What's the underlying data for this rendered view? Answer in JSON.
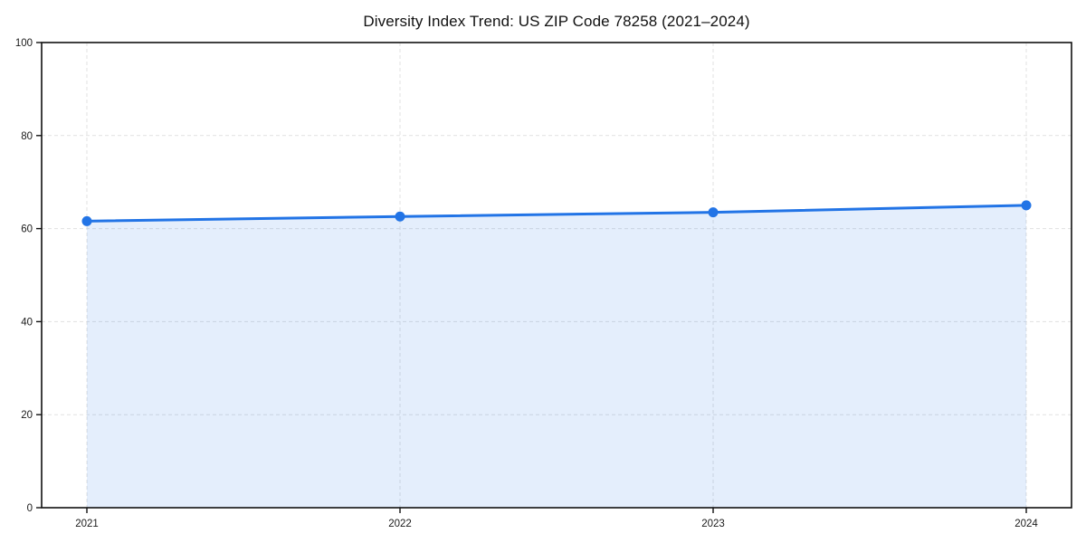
{
  "chart_data": {
    "type": "area",
    "title": "Diversity Index Trend: US ZIP Code 78258 (2021–2024)",
    "series_name": "Diversity Index",
    "categories": [
      "2021",
      "2022",
      "2023",
      "2024"
    ],
    "x": [
      2021,
      2022,
      2023,
      2024
    ],
    "values": [
      61.6,
      62.6,
      63.5,
      65.0
    ],
    "xlabel": "",
    "ylabel": "",
    "ylim": [
      0,
      100
    ],
    "yticks": [
      0,
      20,
      40,
      60,
      80,
      100
    ],
    "grid": "dashed",
    "legend": "none",
    "colors": {
      "line": "#2274e6",
      "marker": "#2274e6",
      "fill": "rgba(34,116,230,0.12)",
      "grid": "#e1e1e1",
      "axis": "#111111",
      "tick_text": "#1a1a1a",
      "background": "#ffffff"
    }
  }
}
